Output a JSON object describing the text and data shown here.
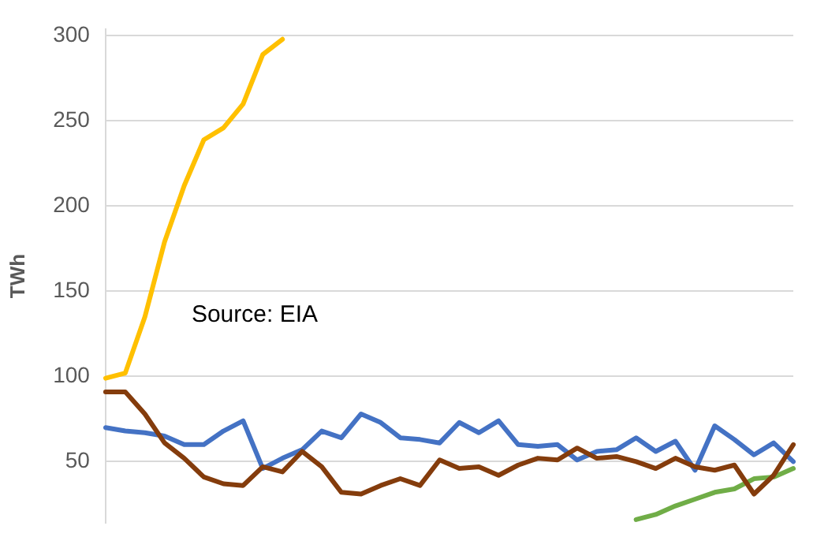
{
  "chart_data": {
    "type": "line",
    "ylabel": "TWh",
    "annotations": [
      "Source: EIA"
    ],
    "categories": [
      null,
      null,
      null,
      null,
      null,
      null,
      null,
      null,
      null,
      null,
      null,
      null,
      null,
      null,
      null,
      null,
      null,
      null,
      null,
      null,
      null,
      null,
      null,
      null,
      null,
      null,
      null,
      null,
      null,
      null,
      null,
      null,
      null,
      null,
      null,
      null
    ],
    "series": [
      {
        "color": "#ffc000",
        "values": [
          99,
          102,
          135,
          179,
          212,
          239,
          246,
          260,
          289,
          298,
          null,
          null,
          null,
          null,
          null,
          null,
          null,
          null,
          null,
          null,
          null,
          null,
          null,
          null,
          null,
          null,
          null,
          null,
          null,
          null,
          null,
          null,
          null,
          null,
          null,
          null
        ]
      },
      {
        "color": "#843c0c",
        "values": [
          91,
          91,
          78,
          61,
          52,
          41,
          37,
          36,
          47,
          44,
          56,
          47,
          32,
          31,
          36,
          40,
          36,
          51,
          46,
          47,
          42,
          48,
          52,
          51,
          58,
          52,
          53,
          50,
          46,
          52,
          47,
          45,
          48,
          31,
          42,
          60
        ]
      },
      {
        "color": "#4472c4",
        "values": [
          70,
          68,
          67,
          65,
          60,
          60,
          68,
          74,
          46,
          52,
          57,
          68,
          64,
          78,
          73,
          64,
          63,
          61,
          73,
          67,
          74,
          60,
          59,
          60,
          51,
          56,
          57,
          64,
          56,
          62,
          45,
          71,
          63,
          54,
          61,
          50
        ]
      },
      {
        "color": "#70ad47",
        "values": [
          null,
          null,
          null,
          null,
          null,
          null,
          null,
          null,
          null,
          null,
          null,
          null,
          null,
          null,
          null,
          null,
          null,
          null,
          null,
          null,
          null,
          null,
          null,
          null,
          null,
          null,
          null,
          16,
          19,
          24,
          28,
          32,
          34,
          40,
          41,
          46
        ]
      }
    ],
    "ylim": [
      14,
      304
    ],
    "yticks": [
      50,
      100,
      150,
      200,
      250,
      300
    ],
    "grid": "y",
    "legend": false,
    "tick_labels": "y",
    "marker": "none",
    "line_style": "solid"
  }
}
